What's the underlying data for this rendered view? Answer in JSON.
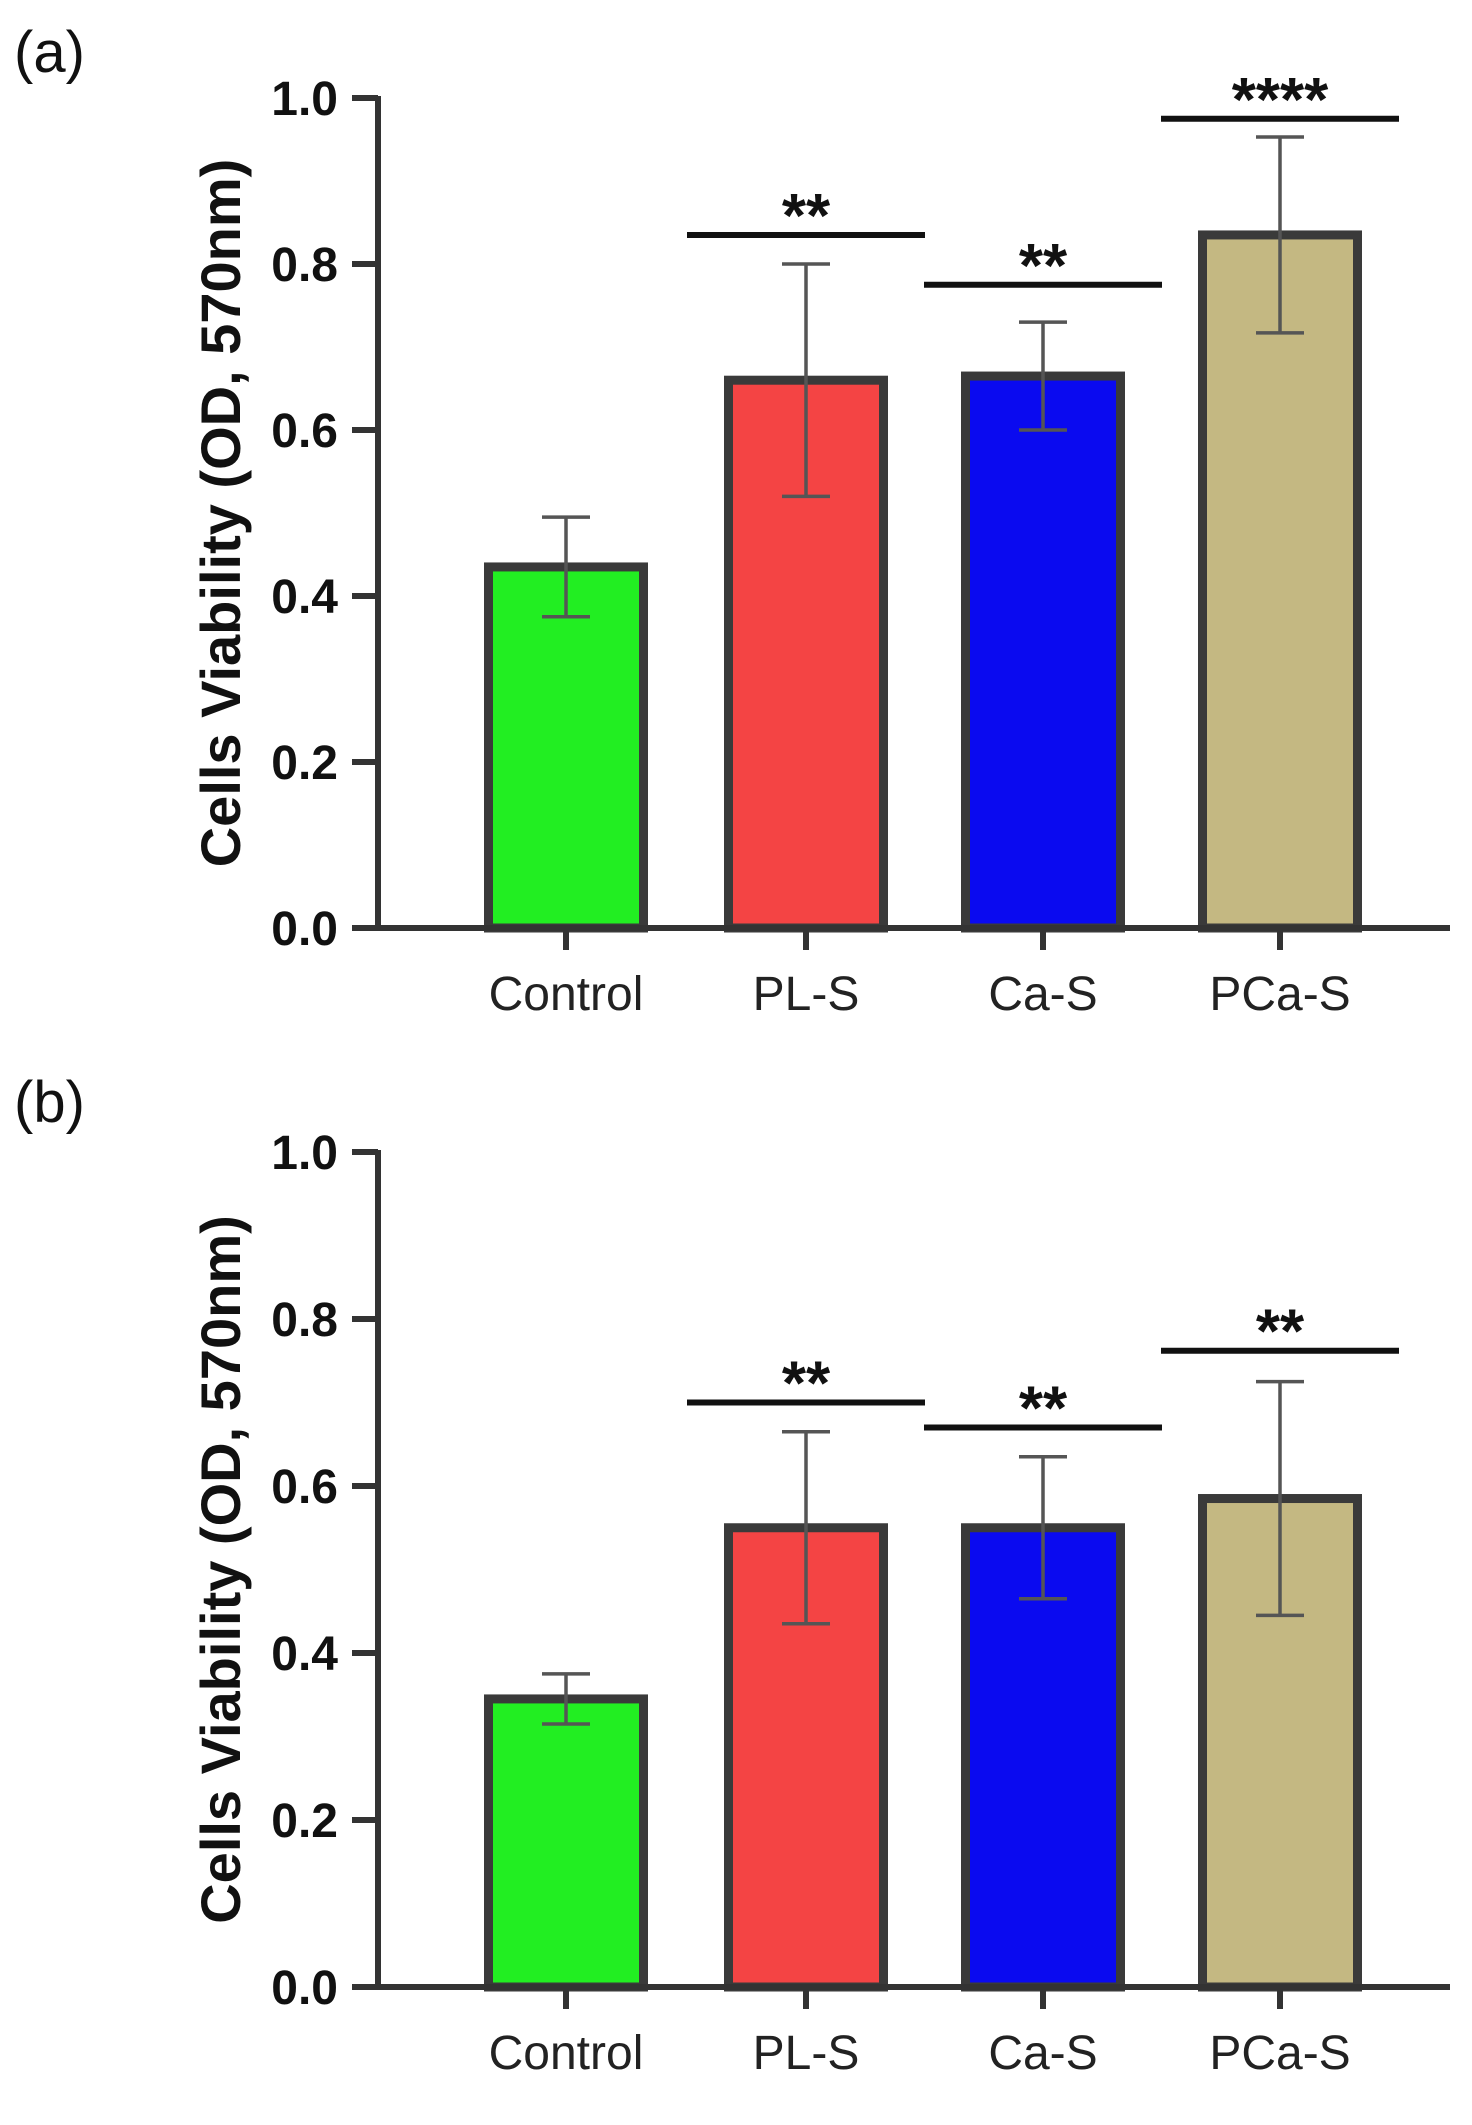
{
  "chart_data": [
    {
      "type": "bar",
      "panel_label": "(a)",
      "categories": [
        "Control",
        "PL-S",
        "Ca-S",
        "PCa-S"
      ],
      "values": [
        0.435,
        0.66,
        0.665,
        0.835
      ],
      "error": [
        0.06,
        0.14,
        0.065,
        0.118
      ],
      "significance": [
        "",
        "**",
        "**",
        "****"
      ],
      "significance_line_y": [
        null,
        0.835,
        0.775,
        0.975
      ],
      "colors": [
        "#22ee22",
        "#f44444",
        "#0a0af0",
        "#c4b882"
      ],
      "ylabel": "Cells Viability (OD, 570nm)",
      "xlabel": "",
      "ylim": [
        0,
        1.0
      ],
      "yticks": [
        "0.0",
        "0.2",
        "0.4",
        "0.6",
        "0.8",
        "1.0"
      ],
      "grid": false
    },
    {
      "type": "bar",
      "panel_label": "(b)",
      "categories": [
        "Control",
        "PL-S",
        "Ca-S",
        "PCa-S"
      ],
      "values": [
        0.345,
        0.55,
        0.55,
        0.585
      ],
      "error": [
        0.03,
        0.115,
        0.085,
        0.14
      ],
      "significance": [
        "",
        "**",
        "**",
        "**"
      ],
      "significance_line_y": [
        null,
        0.7,
        0.67,
        0.762
      ],
      "colors": [
        "#22ee22",
        "#f44444",
        "#0a0af0",
        "#c4b882"
      ],
      "ylabel": "Cells Viability (OD, 570nm)",
      "xlabel": "",
      "ylim": [
        0,
        1.0
      ],
      "yticks": [
        "0.0",
        "0.2",
        "0.4",
        "0.6",
        "0.8",
        "1.0"
      ],
      "grid": false
    }
  ]
}
